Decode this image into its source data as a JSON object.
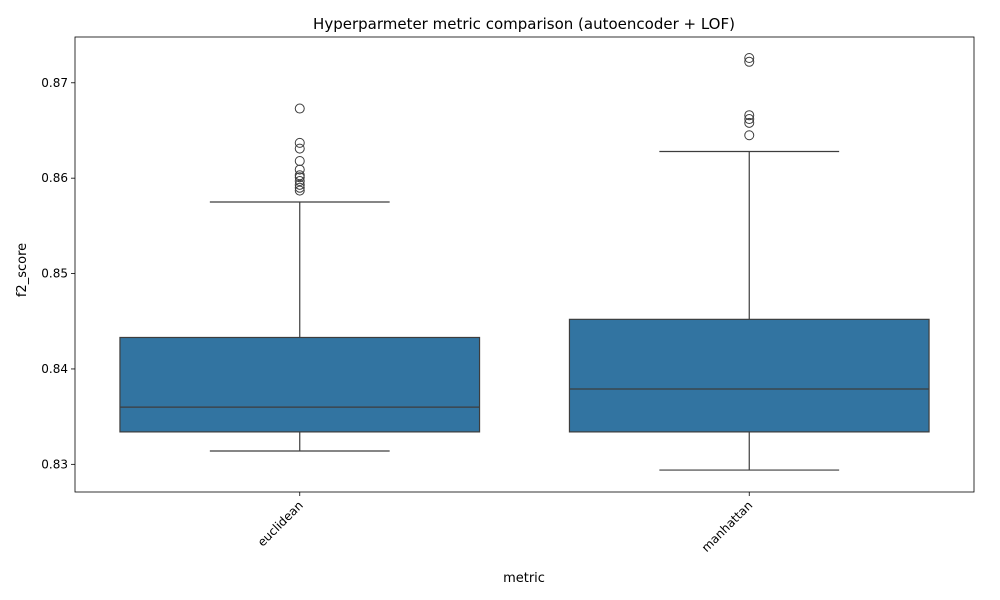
{
  "chart_data": {
    "type": "box",
    "title": "Hyperparmeter metric comparison (autoencoder + LOF)",
    "xlabel": "metric",
    "ylabel": "f2_score",
    "ylim": [
      0.8271,
      0.8748
    ],
    "yticks": [
      0.83,
      0.84,
      0.85,
      0.86,
      0.87
    ],
    "ytick_labels": [
      "0.83",
      "0.84",
      "0.85",
      "0.86",
      "0.87"
    ],
    "grid": false,
    "box_color": "#3274a1",
    "line_color": "#3d3d3d",
    "categories": [
      "euclidean",
      "manhattan"
    ],
    "boxes": [
      {
        "category": "euclidean",
        "whisker_low": 0.8314,
        "q1": 0.8334,
        "median": 0.836,
        "q3": 0.8433,
        "whisker_high": 0.8575,
        "outliers": [
          0.8587,
          0.859,
          0.8593,
          0.8597,
          0.8601,
          0.8603,
          0.8609,
          0.8618,
          0.8631,
          0.8637,
          0.8673
        ]
      },
      {
        "category": "manhattan",
        "whisker_low": 0.8294,
        "q1": 0.8334,
        "median": 0.8379,
        "q3": 0.8452,
        "whisker_high": 0.8628,
        "outliers": [
          0.8645,
          0.8658,
          0.8662,
          0.8666,
          0.8722,
          0.8726
        ]
      }
    ]
  }
}
